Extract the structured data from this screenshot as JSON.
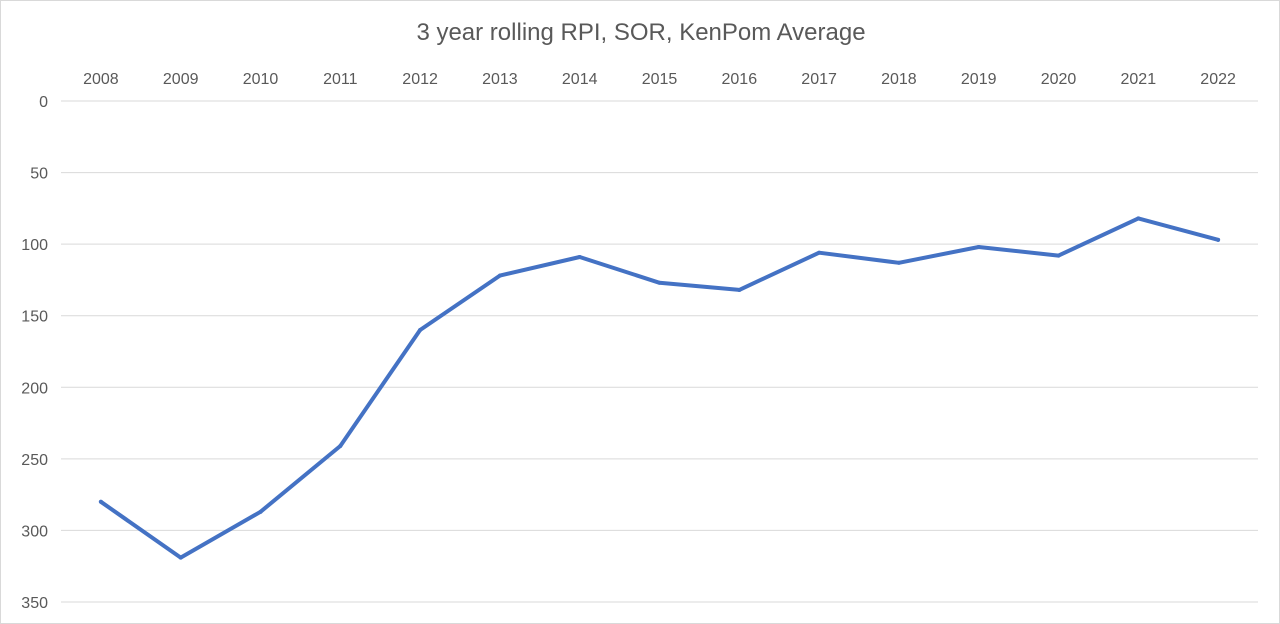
{
  "chart_data": {
    "type": "line",
    "title": "3 year rolling RPI, SOR, KenPom Average",
    "xlabel": "",
    "ylabel": "",
    "categories": [
      "2008",
      "2009",
      "2010",
      "2011",
      "2012",
      "2013",
      "2014",
      "2015",
      "2016",
      "2017",
      "2018",
      "2019",
      "2020",
      "2021",
      "2022"
    ],
    "series": [
      {
        "values": [
          280,
          319,
          287,
          241,
          160,
          122,
          109,
          127,
          132,
          106,
          113,
          102,
          108,
          82,
          97
        ],
        "color": "#4472C4"
      }
    ],
    "ylim": [
      0,
      350
    ],
    "y_reversed": true,
    "y_ticks": [
      0,
      50,
      100,
      150,
      200,
      250,
      300,
      350
    ],
    "x_axis_position": "top",
    "grid": true,
    "legend": "none"
  }
}
